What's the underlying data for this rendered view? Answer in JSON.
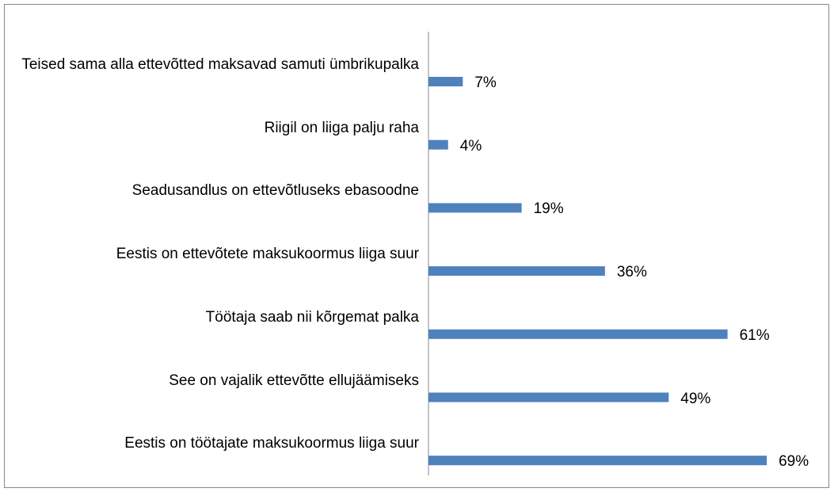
{
  "chart_data": {
    "type": "barh",
    "categories": [
      "Teised sama alla ettevõtted maksavad samuti ümbrikupalka",
      "Riigil on liiga palju raha",
      "Seadusandlus on ettevõtluseks ebasoodne",
      "Eestis on ettevõtete maksukoormus liiga suur",
      "Töötaja saab nii kõrgemat palka",
      "See on vajalik ettevõtte ellujäämiseks",
      "Eestis on töötajate maksukoormus liiga suur"
    ],
    "values": [
      7,
      4,
      19,
      36,
      61,
      49,
      69
    ],
    "value_labels": [
      "7%",
      "4%",
      "19%",
      "36%",
      "61%",
      "49%",
      "69%"
    ],
    "color": "#4f81bd",
    "xlim": [
      0,
      100
    ]
  }
}
